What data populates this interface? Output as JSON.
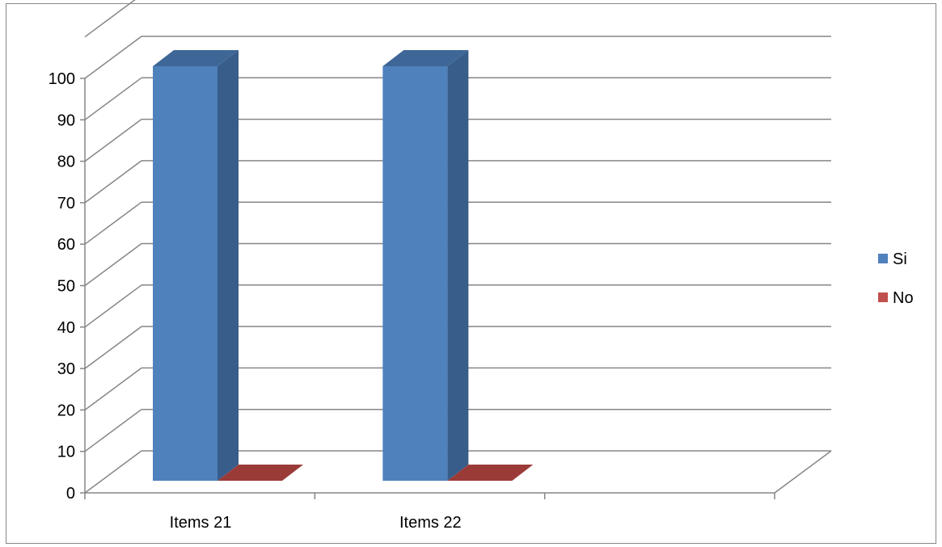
{
  "chart_data": {
    "type": "bar",
    "style": "3d-clustered-column",
    "categories": [
      "Items 21",
      "Items 22",
      ""
    ],
    "series": [
      {
        "name": "Si",
        "values": [
          100,
          100,
          null
        ]
      },
      {
        "name": "No",
        "values": [
          0,
          0,
          null
        ]
      }
    ],
    "ylim": [
      0,
      100
    ],
    "yticks": [
      0,
      10,
      20,
      30,
      40,
      50,
      60,
      70,
      80,
      90,
      100
    ],
    "grid": true,
    "legend_position": "right",
    "colors": {
      "Si": "#4f81bd",
      "Si_side": "#385d8a",
      "Si_top": "#3e6797",
      "No": "#c0504d",
      "No_side": "#8b3532",
      "No_top": "#9b3b38",
      "grid": "#868686"
    }
  },
  "legend": [
    {
      "label": "Si",
      "color": "#4f81bd"
    },
    {
      "label": "No",
      "color": "#c0504d"
    }
  ]
}
